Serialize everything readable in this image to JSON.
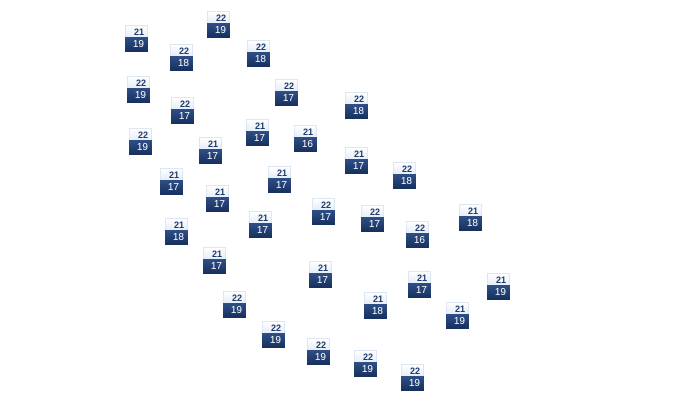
{
  "markers": [
    {
      "high": "21",
      "low": "19"
    },
    {
      "high": "22",
      "low": "19"
    },
    {
      "high": "22",
      "low": "18"
    },
    {
      "high": "22",
      "low": "18"
    },
    {
      "high": "22",
      "low": "19"
    },
    {
      "high": "22",
      "low": "17"
    },
    {
      "high": "22",
      "low": "17"
    },
    {
      "high": "22",
      "low": "18"
    },
    {
      "high": "22",
      "low": "19"
    },
    {
      "high": "21",
      "low": "17"
    },
    {
      "high": "21",
      "low": "16"
    },
    {
      "high": "21",
      "low": "17"
    },
    {
      "high": "21",
      "low": "17"
    },
    {
      "high": "21",
      "low": "17"
    },
    {
      "high": "21",
      "low": "17"
    },
    {
      "high": "22",
      "low": "18"
    },
    {
      "high": "21",
      "low": "17"
    },
    {
      "high": "22",
      "low": "17"
    },
    {
      "high": "22",
      "low": "17"
    },
    {
      "high": "21",
      "low": "18"
    },
    {
      "high": "21",
      "low": "17"
    },
    {
      "high": "21",
      "low": "18"
    },
    {
      "high": "22",
      "low": "16"
    },
    {
      "high": "21",
      "low": "17"
    },
    {
      "high": "21",
      "low": "17"
    },
    {
      "high": "21",
      "low": "19"
    },
    {
      "high": "21",
      "low": "17"
    },
    {
      "high": "22",
      "low": "19"
    },
    {
      "high": "21",
      "low": "18"
    },
    {
      "high": "21",
      "low": "19"
    },
    {
      "high": "22",
      "low": "19"
    },
    {
      "high": "22",
      "low": "19"
    },
    {
      "high": "22",
      "low": "19"
    },
    {
      "high": "22",
      "low": "19"
    }
  ],
  "colors": {
    "high_text": "#1f3a6b",
    "low_bg": "#1f3a6b",
    "low_text": "#ffffff"
  }
}
